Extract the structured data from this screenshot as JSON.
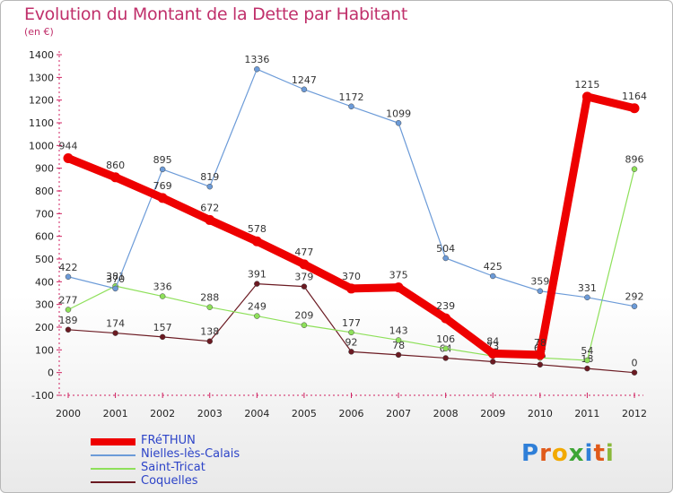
{
  "chart_data": {
    "type": "line",
    "title": "Evolution du Montant de la Dette par Habitant",
    "subtitle": "(en €)",
    "xlabel": "",
    "ylabel": "",
    "x": [
      "2000",
      "2001",
      "2002",
      "2003",
      "2004",
      "2005",
      "2006",
      "2007",
      "2008",
      "2009",
      "2010",
      "2011",
      "2012"
    ],
    "ylim": [
      -100,
      1400
    ],
    "yticks": [
      -100,
      0,
      100,
      200,
      300,
      400,
      500,
      600,
      700,
      800,
      900,
      1000,
      1100,
      1200,
      1300,
      1400
    ],
    "grid": false,
    "legend_position": "bottom-left",
    "series": [
      {
        "name": "Coquelles",
        "color": "#6b1a22",
        "values": [
          189,
          174,
          157,
          138,
          391,
          379,
          92,
          78,
          64,
          48,
          35,
          18,
          0
        ],
        "labels": [
          "189",
          "174",
          "157",
          "138",
          "391",
          "379",
          "92",
          "78",
          "64",
          "48",
          "35",
          "18",
          "0"
        ]
      },
      {
        "name": "Saint-Tricat",
        "color": "#8ee05a",
        "values": [
          277,
          381,
          336,
          288,
          249,
          209,
          177,
          143,
          106,
          73,
          65,
          54,
          896
        ],
        "labels": [
          "277",
          "381",
          "336",
          "288",
          "249",
          "209",
          "177",
          "143",
          "106",
          "73",
          "65",
          "54",
          "896"
        ]
      },
      {
        "name": "Nielles-lès-Calais",
        "color": "#6c9bd8",
        "values": [
          422,
          370,
          895,
          819,
          1336,
          1247,
          1172,
          1099,
          504,
          425,
          359,
          331,
          292
        ],
        "labels": [
          "422",
          "370",
          "895",
          "819",
          "1336",
          "1247",
          "1172",
          "1099",
          "504",
          "425",
          "359",
          "331",
          "292"
        ]
      },
      {
        "name": "FRéTHUN",
        "color": "#ee0000",
        "values": [
          944,
          860,
          769,
          672,
          578,
          477,
          370,
          375,
          239,
          84,
          78,
          1215,
          1164
        ],
        "labels": [
          "944",
          "860",
          "769",
          "672",
          "578",
          "477",
          "370",
          "375",
          "239",
          "84",
          "78",
          "1215",
          "1164"
        ]
      }
    ]
  },
  "logo": {
    "text": "Proxiti",
    "colors": [
      "#2f7fd8",
      "#e05a1a",
      "#f2a900",
      "#3da535",
      "#2f7fd8",
      "#e05a1a",
      "#8ab83a"
    ]
  }
}
